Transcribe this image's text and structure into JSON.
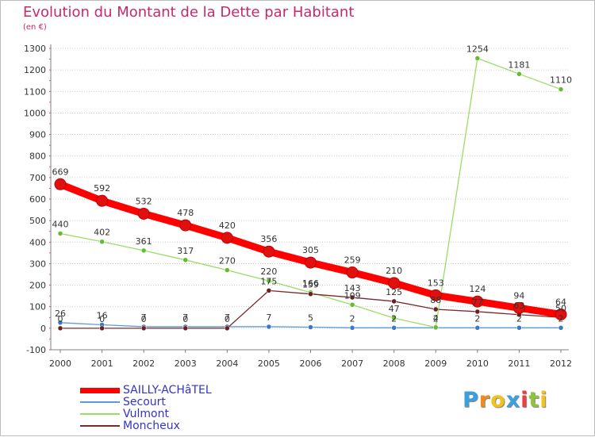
{
  "header": {
    "title": "Evolution du Montant de la Dette par Habitant",
    "subtitle": "(en €)"
  },
  "colors": {
    "title": "#c8286e",
    "legend_text": "#3333cc",
    "grid": "#c0c0c0",
    "axis": "#808080"
  },
  "chart_data": {
    "type": "line",
    "title": "Evolution du Montant de la Dette par Habitant",
    "subtitle": "(en €)",
    "xlabel": "",
    "ylabel": "",
    "categories": [
      "2000",
      "2001",
      "2002",
      "2003",
      "2004",
      "2005",
      "2006",
      "2007",
      "2008",
      "2009",
      "2010",
      "2011",
      "2012"
    ],
    "ylim": [
      -100,
      1300
    ],
    "yticks": [
      -100,
      0,
      100,
      200,
      300,
      400,
      500,
      600,
      700,
      800,
      900,
      1000,
      1100,
      1200,
      1300
    ],
    "grid": "horizontal",
    "legend_position": "bottom-left",
    "series": [
      {
        "name": "SAILLY-ACHâTEL",
        "color": "#ff0000",
        "marker_color": "#e01010",
        "emphasis": true,
        "values": [
          669,
          592,
          532,
          478,
          420,
          356,
          305,
          259,
          210,
          153,
          124,
          94,
          64
        ],
        "labels": [
          "669",
          "592",
          "532",
          "478",
          "420",
          "356",
          "305",
          "259",
          "210",
          "153",
          "124",
          "94",
          "64"
        ]
      },
      {
        "name": "Secourt",
        "color": "#5b9bd5",
        "marker_color": "#3a78c8",
        "emphasis": false,
        "values": [
          26,
          16,
          7,
          7,
          7,
          7,
          5,
          2,
          2,
          2,
          2,
          2,
          2
        ],
        "labels": [
          "26",
          "16",
          "7",
          "7",
          "7",
          "7",
          "5",
          "2",
          "2",
          "2",
          "2",
          "2",
          "2"
        ]
      },
      {
        "name": "Vulmont",
        "color": "#99dd66",
        "marker_color": "#66bb33",
        "emphasis": false,
        "values": [
          440,
          402,
          361,
          317,
          270,
          220,
          166,
          109,
          47,
          4,
          1254,
          1181,
          1110
        ],
        "labels": [
          "440",
          "402",
          "361",
          "317",
          "270",
          "220",
          "166",
          "109",
          "47",
          "4",
          "1254",
          "1181",
          "1110"
        ]
      },
      {
        "name": "Moncheux",
        "color": "#7b2a2a",
        "marker_color": "#6b1f1f",
        "emphasis": false,
        "values": [
          0,
          0,
          0,
          0,
          0,
          175,
          159,
          143,
          125,
          88,
          77,
          63,
          50
        ],
        "labels": [
          "0",
          "0",
          "0",
          "0",
          "0",
          "175",
          "159",
          "143",
          "125",
          "88",
          "77",
          "63",
          "50"
        ]
      }
    ]
  },
  "legend": {
    "items": [
      {
        "label": "SAILLY-ACHâTEL"
      },
      {
        "label": "Secourt"
      },
      {
        "label": "Vulmont"
      },
      {
        "label": "Moncheux"
      }
    ]
  },
  "logo": {
    "text": "Proxiti",
    "letters": [
      "P",
      "r",
      "o",
      "x",
      "i",
      "t",
      "i"
    ],
    "letter_colors": [
      "#3aa0e0",
      "#f08c1c",
      "#f4c21c",
      "#3aa0e0",
      "#e84040",
      "#8cc43c",
      "#f4c21c"
    ]
  }
}
